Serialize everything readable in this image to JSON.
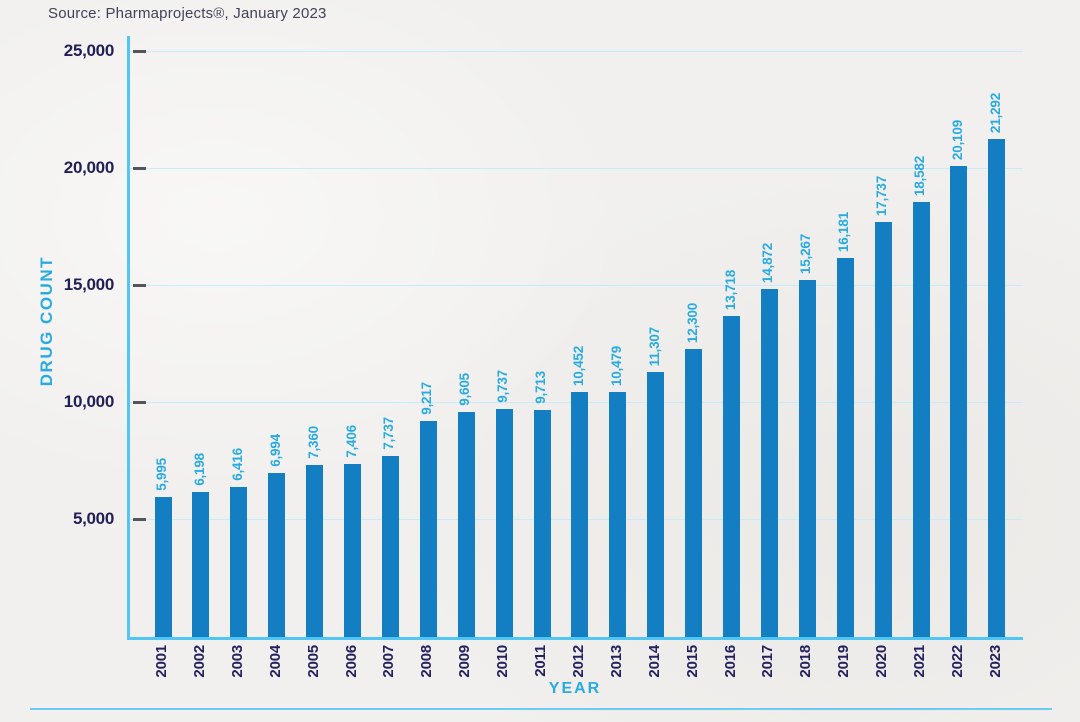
{
  "source": {
    "text": "Source: Pharmaprojects®, January 2023"
  },
  "colors": {
    "background": "#f1f0ee",
    "bar": "#137fc2",
    "accent_cyan": "#29abe2",
    "axis_line": "#4fc6f3",
    "grid_line": "#c6ebfa",
    "navy_text": "#221f57",
    "source_text": "#42425a",
    "tick_dash": "#54555a",
    "bottom_rule": "#68ccf4"
  },
  "chart_data": {
    "type": "bar",
    "title": "",
    "xlabel": "YEAR",
    "ylabel": "DRUG COUNT",
    "categories": [
      "2001",
      "2002",
      "2003",
      "2004",
      "2005",
      "2006",
      "2007",
      "2008",
      "2009",
      "2010",
      "2011",
      "2012",
      "2013",
      "2014",
      "2015",
      "2016",
      "2017",
      "2018",
      "2019",
      "2020",
      "2021",
      "2022",
      "2023"
    ],
    "values": [
      5995,
      6198,
      6416,
      6994,
      7360,
      7406,
      7737,
      9217,
      9605,
      9737,
      9713,
      10452,
      10479,
      11307,
      12300,
      13718,
      14872,
      15267,
      16181,
      17737,
      18582,
      20109,
      21292
    ],
    "value_labels": [
      "5,995",
      "6,198",
      "6,416",
      "6,994",
      "7,360",
      "7,406",
      "7,737",
      "9,217",
      "9,605",
      "9,737",
      "9,713",
      "10,452",
      "10,479",
      "11,307",
      "12,300",
      "13,718",
      "14,872",
      "15,267",
      "16,181",
      "17,737",
      "18,582",
      "20,109",
      "21,292"
    ],
    "yticks": [
      5000,
      10000,
      15000,
      20000,
      25000
    ],
    "ytick_labels": [
      "5,000",
      "10,000",
      "15,000",
      "20,000",
      "25,000"
    ],
    "ylim": [
      0,
      25000
    ],
    "grid": true,
    "legend": "none",
    "bar_orientation": "vertical",
    "value_label_rotation": 90,
    "x_label_rotation": 90
  }
}
